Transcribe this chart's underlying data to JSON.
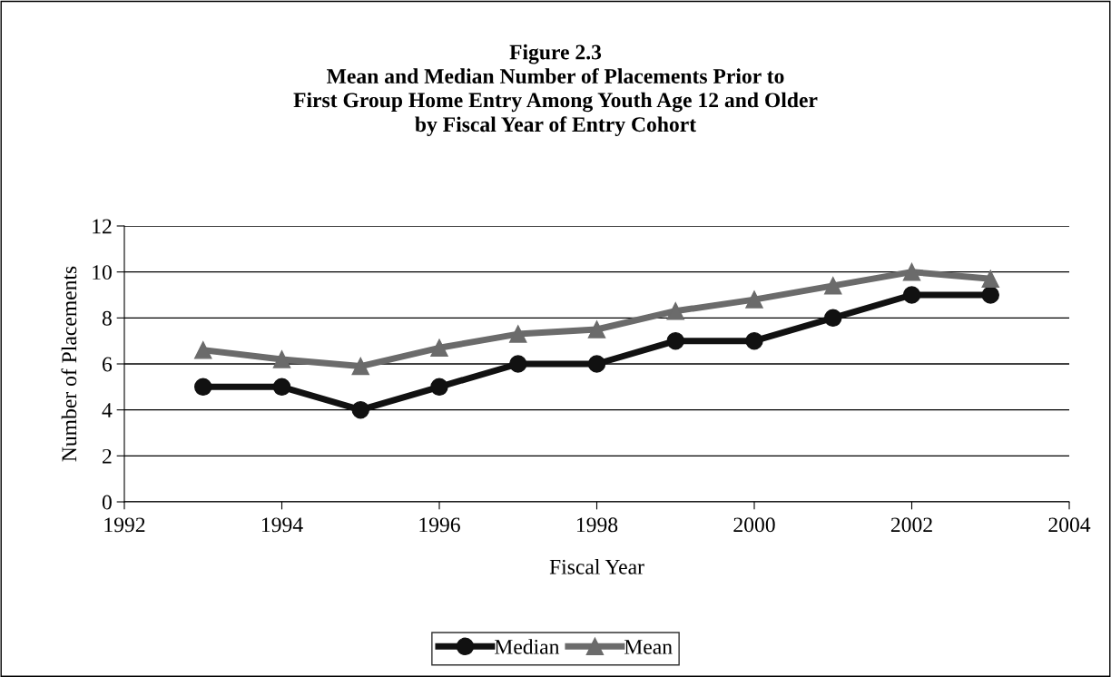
{
  "chart_data": {
    "type": "line",
    "title": "Figure 2.3\nMean and Median Number of Placements Prior to\nFirst Group Home Entry Among Youth Age 12 and Older\nby Fiscal Year of Entry Cohort",
    "xlabel": "Fiscal Year",
    "ylabel": "Number of Placements",
    "x": [
      1993,
      1994,
      1995,
      1996,
      1997,
      1998,
      1999,
      2000,
      2001,
      2002,
      2003
    ],
    "series": [
      {
        "name": "Median",
        "color": "#111111",
        "marker": "circle",
        "values": [
          5,
          5,
          4,
          5,
          6,
          6,
          7,
          7,
          8,
          9,
          9
        ]
      },
      {
        "name": "Mean",
        "color": "#6b6b6b",
        "marker": "triangle",
        "values": [
          6.6,
          6.2,
          5.9,
          6.7,
          7.3,
          7.5,
          8.3,
          8.8,
          9.4,
          10.0,
          9.7
        ]
      }
    ],
    "xlim": [
      1992,
      2004
    ],
    "xticks": [
      1992,
      1994,
      1996,
      1998,
      2000,
      2002,
      2004
    ],
    "ylim": [
      0,
      12
    ],
    "yticks": [
      0,
      2,
      4,
      6,
      8,
      10,
      12
    ],
    "grid": "y",
    "legend": "bottom",
    "line_style": "solid"
  }
}
